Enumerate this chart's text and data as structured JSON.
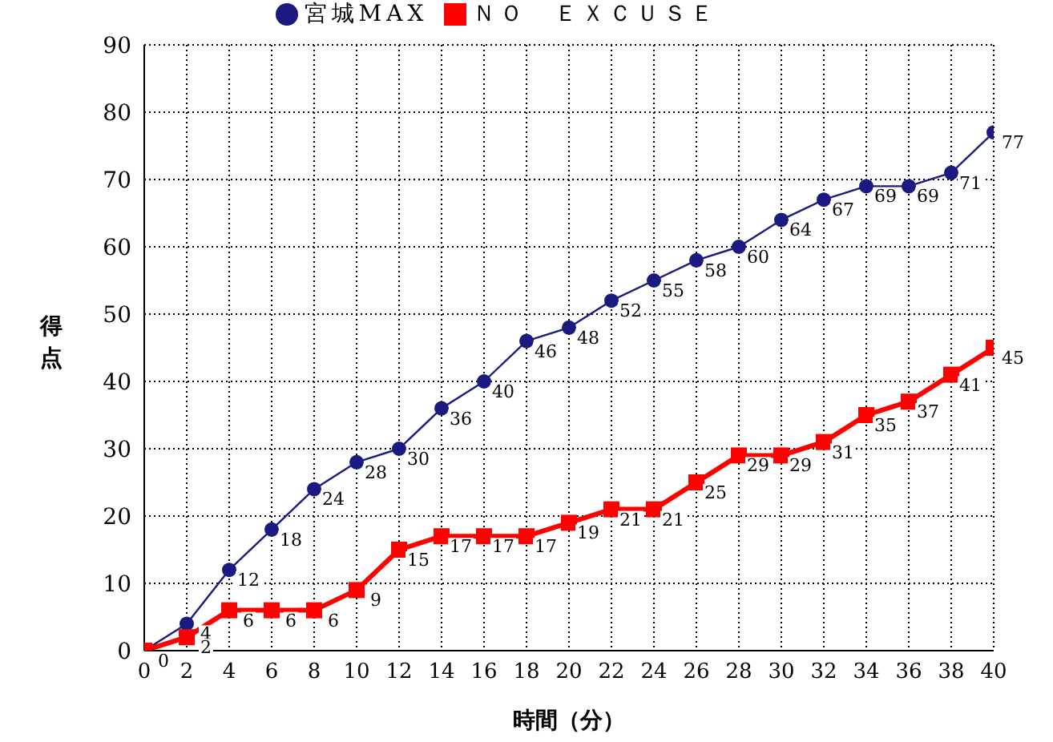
{
  "chart_data": {
    "type": "line",
    "xlabel": "時間（分）",
    "ylabel": "得点",
    "x": [
      0,
      2,
      4,
      6,
      8,
      10,
      12,
      14,
      16,
      18,
      20,
      22,
      24,
      26,
      28,
      30,
      32,
      34,
      36,
      38,
      40
    ],
    "series": [
      {
        "name": "宮城MAX",
        "color": "#1a1a80",
        "marker": "circle",
        "values": [
          0,
          4,
          12,
          18,
          24,
          28,
          30,
          36,
          40,
          46,
          48,
          52,
          55,
          58,
          60,
          64,
          67,
          69,
          69,
          71,
          77
        ],
        "value_labels": [
          null,
          "4",
          "12",
          "18",
          "24",
          "28",
          "30",
          "36",
          "40",
          "46",
          "48",
          "52",
          "55",
          "58",
          "60",
          "64",
          "67",
          "69",
          "69",
          "71",
          "77"
        ]
      },
      {
        "name": "ＮＯ　ＥＸＣＵＳＥ",
        "color": "#ff0000",
        "marker": "square",
        "values": [
          0,
          2,
          6,
          6,
          6,
          9,
          15,
          17,
          17,
          17,
          19,
          21,
          21,
          25,
          29,
          29,
          31,
          35,
          37,
          41,
          45
        ]
      }
    ],
    "xlim": [
      0,
      40
    ],
    "xticks": [
      0,
      2,
      4,
      6,
      8,
      10,
      12,
      14,
      16,
      18,
      20,
      22,
      24,
      26,
      28,
      30,
      32,
      34,
      36,
      38,
      40
    ],
    "ylim": [
      0,
      90
    ],
    "yticks": [
      0,
      10,
      20,
      30,
      40,
      50,
      60,
      70,
      80,
      90
    ],
    "grid": true,
    "legend": "top",
    "data_labels": true,
    "line_style": "solid"
  }
}
